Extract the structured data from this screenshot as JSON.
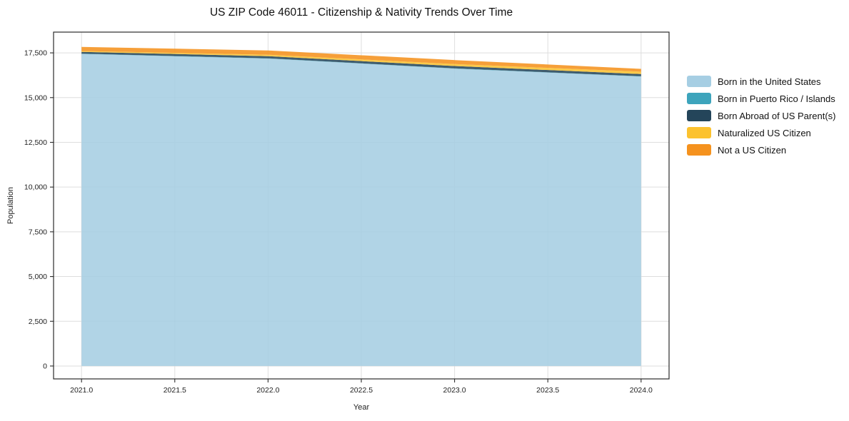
{
  "chart_data": {
    "type": "area",
    "stacked": true,
    "title": "US ZIP Code 46011 - Citizenship & Nativity Trends Over Time",
    "xlabel": "Year",
    "ylabel": "Population",
    "x": [
      2021,
      2022,
      2023,
      2024
    ],
    "series": [
      {
        "name": "Born in the United States",
        "color": "#a6cee3",
        "values": [
          17440,
          17180,
          16620,
          16180
        ]
      },
      {
        "name": "Born in Puerto Rico / Islands",
        "color": "#3da4bc",
        "values": [
          15,
          15,
          15,
          15
        ]
      },
      {
        "name": "Born Abroad of US Parent(s)",
        "color": "#24455a",
        "values": [
          100,
          120,
          130,
          120
        ]
      },
      {
        "name": "Naturalized US Citizen",
        "color": "#fcc22f",
        "values": [
          50,
          80,
          110,
          130
        ]
      },
      {
        "name": "Not a US Citizen",
        "color": "#f5921e",
        "values": [
          230,
          240,
          220,
          160
        ]
      }
    ],
    "xticks": {
      "values": [
        2021.0,
        2021.5,
        2022.0,
        2022.5,
        2023.0,
        2023.5,
        2024.0
      ],
      "labels": [
        "2021.0",
        "2021.5",
        "2022.0",
        "2022.5",
        "2023.0",
        "2023.5",
        "2024.0"
      ]
    },
    "yticks": {
      "values": [
        0,
        2500,
        5000,
        7500,
        10000,
        12500,
        15000,
        17500
      ],
      "labels": [
        "0",
        "2,500",
        "5,000",
        "7,500",
        "10,000",
        "12,500",
        "15,000",
        "17,500"
      ]
    },
    "xlim": [
      2020.85,
      2024.15
    ],
    "ylim": [
      -720,
      18660
    ],
    "grid": true,
    "legend_position": "right",
    "area_opacity": 0.88
  },
  "colors": {
    "grid": "#dedede",
    "axis": "#2b2b2b",
    "text": "#1f1f1f",
    "background": "#ffffff"
  }
}
